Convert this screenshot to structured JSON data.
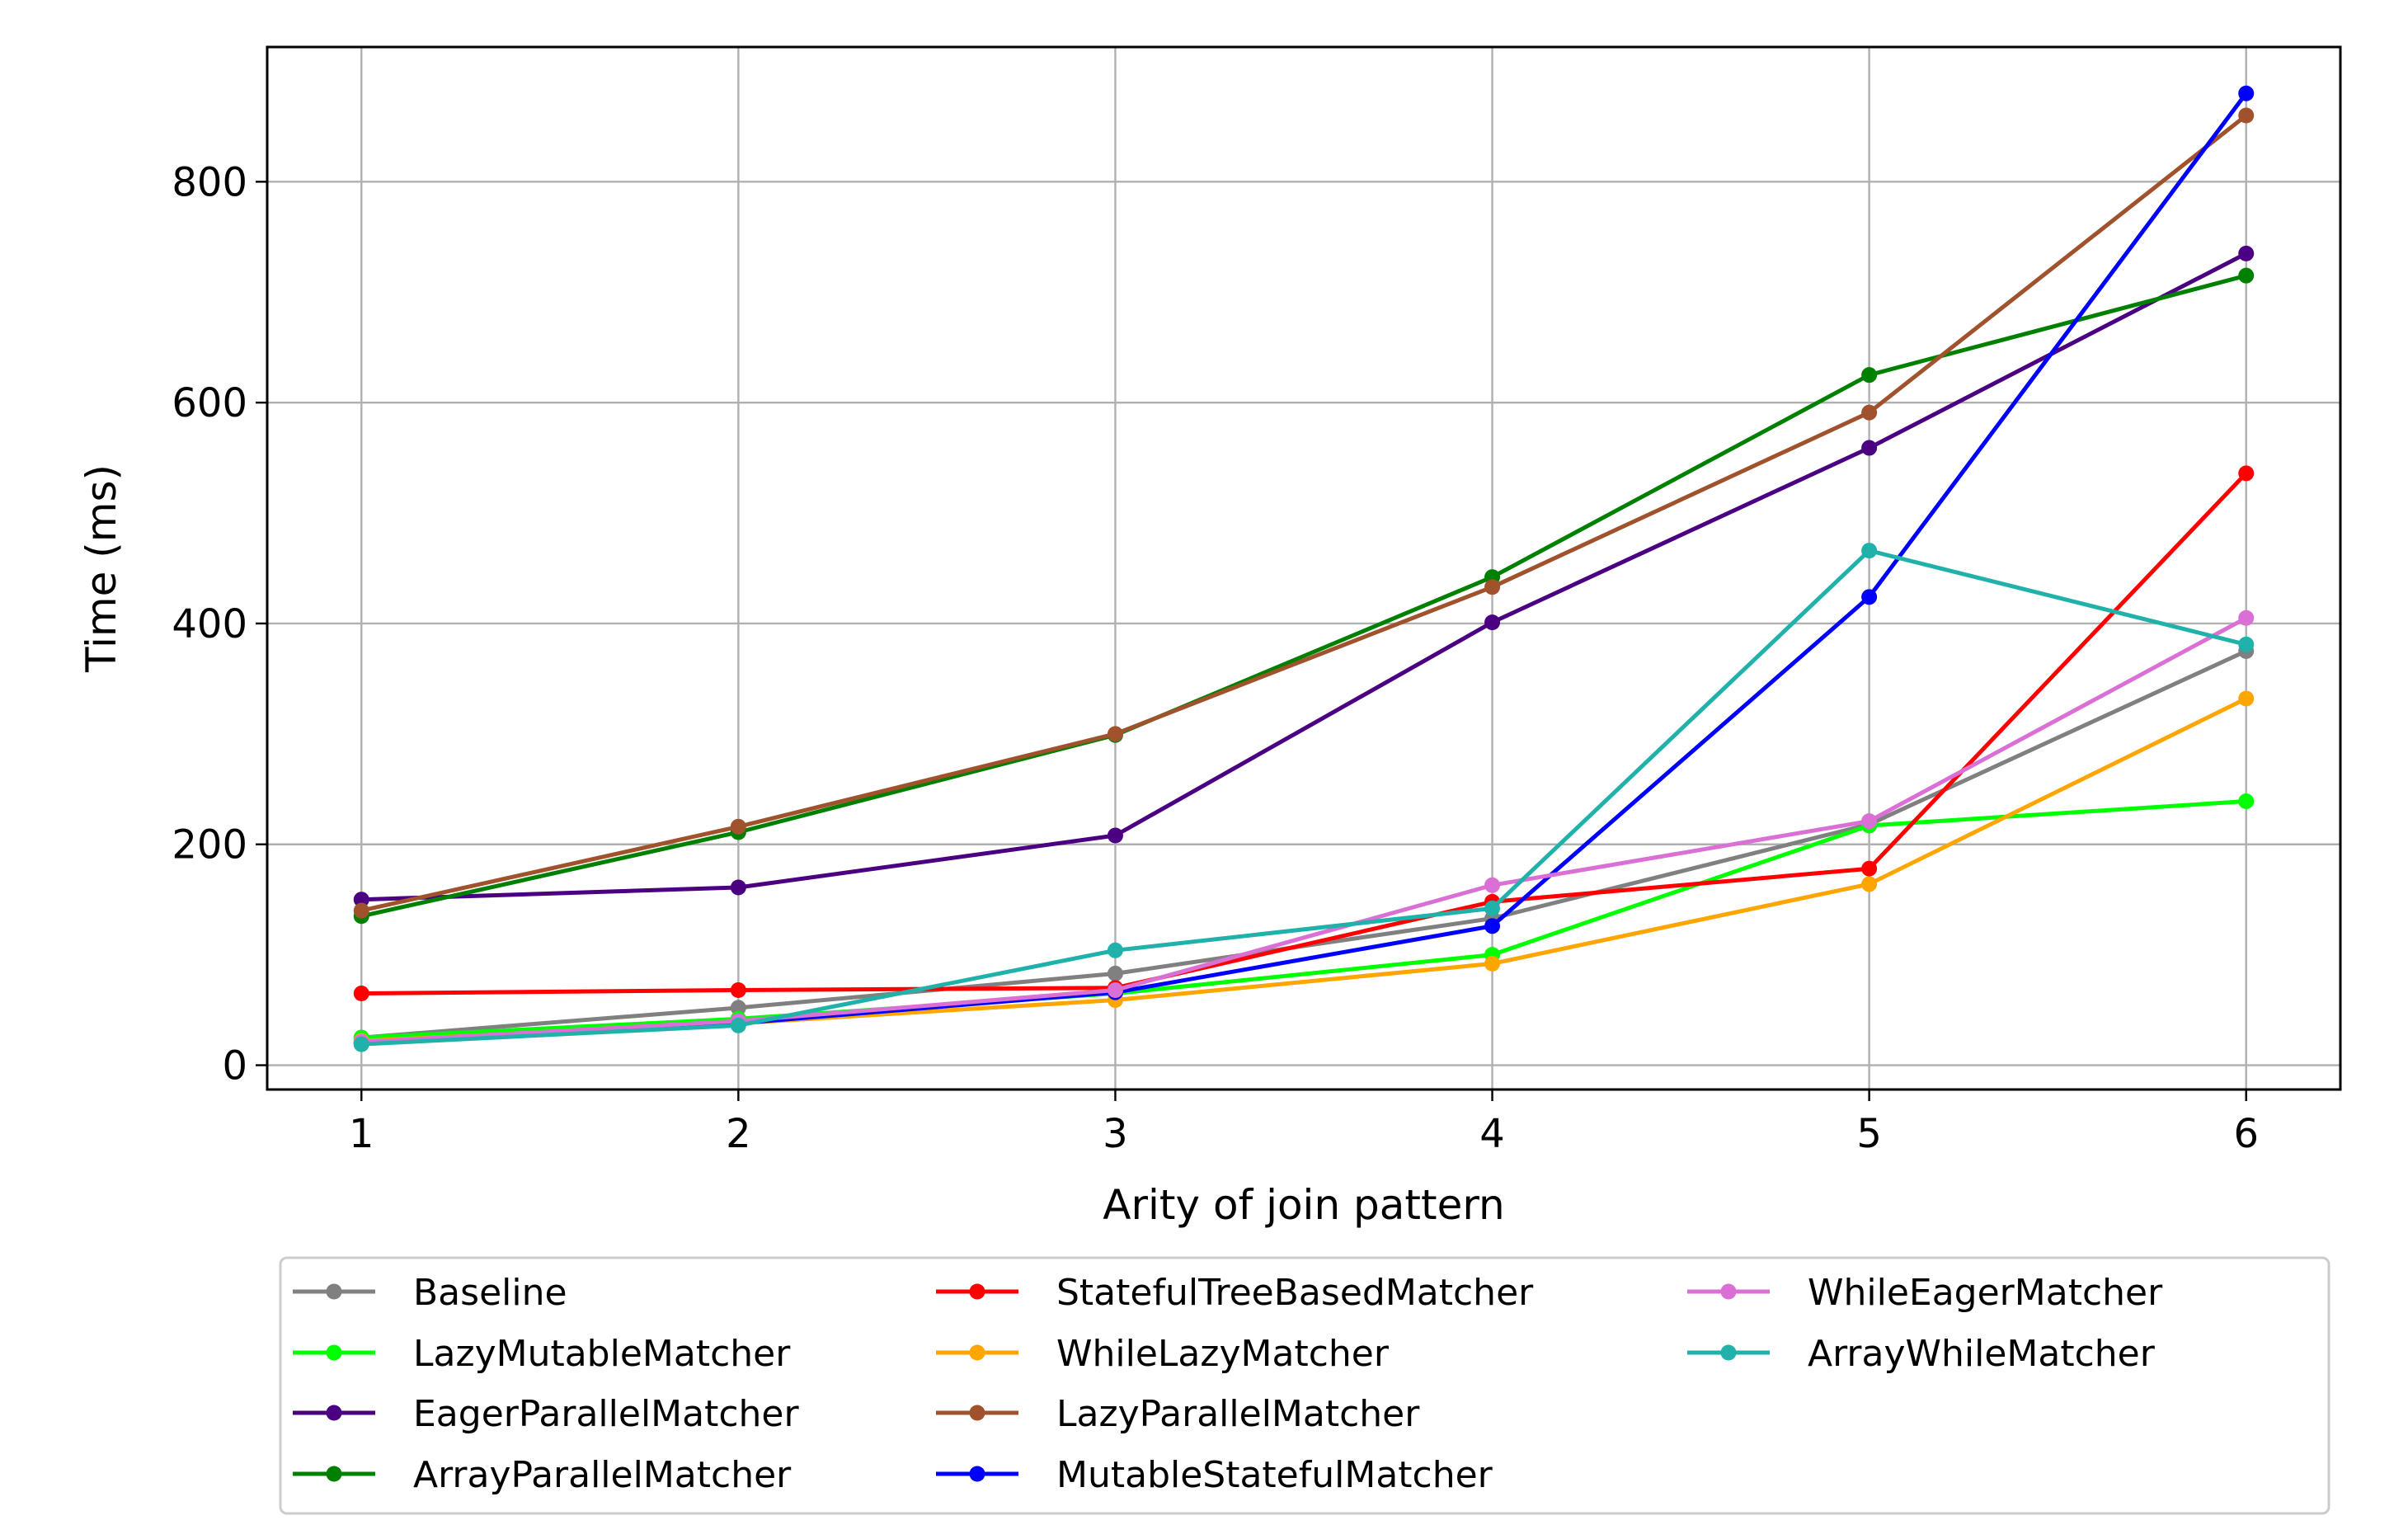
{
  "chart_data": {
    "type": "line",
    "xlabel": "Arity of join pattern",
    "ylabel": "Time (ms)",
    "x": [
      1,
      2,
      3,
      4,
      5,
      6
    ],
    "xlim": [
      0.75,
      6.25
    ],
    "ylim": [
      -22,
      922
    ],
    "xticks": [
      1,
      2,
      3,
      4,
      5,
      6
    ],
    "yticks": [
      0,
      200,
      400,
      600,
      800
    ],
    "grid": true,
    "legend_position": "bottom",
    "legend_columns": 3,
    "series": [
      {
        "name": "Baseline",
        "color": "#808080",
        "values": [
          25,
          52,
          83,
          133,
          218,
          375
        ]
      },
      {
        "name": "LazyMutableMatcher",
        "color": "#00ff00",
        "values": [
          25,
          42,
          65,
          100,
          217,
          239
        ]
      },
      {
        "name": "EagerParallelMatcher",
        "color": "#4b0082",
        "values": [
          150,
          161,
          208,
          401,
          559,
          735
        ]
      },
      {
        "name": "ArrayParallelMatcher",
        "color": "#008000",
        "values": [
          135,
          211,
          299,
          442,
          625,
          715
        ]
      },
      {
        "name": "StatefulTreeBasedMatcher",
        "color": "#ff0000",
        "values": [
          65,
          68,
          70,
          148,
          178,
          536
        ]
      },
      {
        "name": "WhileLazyMatcher",
        "color": "#ffa500",
        "values": [
          22,
          38,
          59,
          92,
          164,
          332
        ]
      },
      {
        "name": "LazyParallelMatcher",
        "color": "#a0522d",
        "values": [
          140,
          216,
          300,
          433,
          591,
          860
        ]
      },
      {
        "name": "MutableStatefulMatcher",
        "color": "#0000ff",
        "values": [
          20,
          38,
          66,
          126,
          424,
          880
        ]
      },
      {
        "name": "WhileEagerMatcher",
        "color": "#da70d6",
        "values": [
          21,
          40,
          68,
          163,
          221,
          405
        ]
      },
      {
        "name": "ArrayWhileMatcher",
        "color": "#20b2aa",
        "values": [
          19,
          36,
          104,
          142,
          466,
          381
        ]
      }
    ]
  }
}
